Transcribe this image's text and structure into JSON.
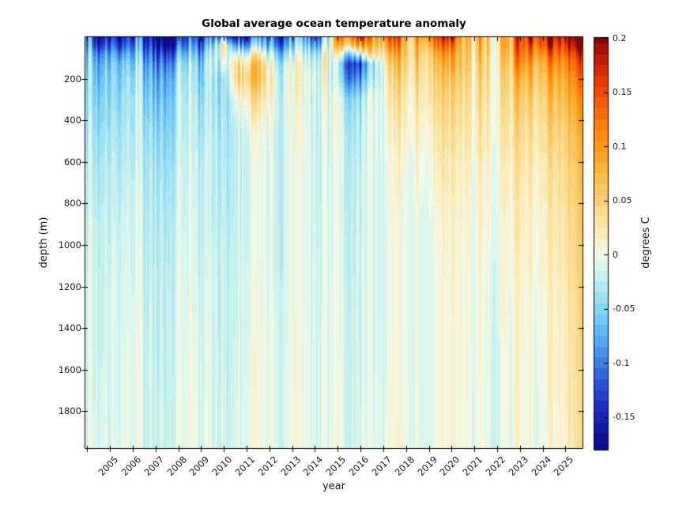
{
  "figure": {
    "background": "#FFFFFF"
  },
  "chart_data": {
    "type": "heatmap",
    "title": "Global average ocean temperature anomaly",
    "xlabel": "year",
    "ylabel": "depth (m)",
    "colorbar_label": "degrees C",
    "x_range_years": [
      2003.92,
      2025.75
    ],
    "depth_range_m": [
      0,
      1977
    ],
    "clim_degC": [
      -0.18,
      0.2
    ],
    "contour_step_degC": 0.01,
    "x_tick_years": [
      2005,
      2006,
      2007,
      2008,
      2009,
      2010,
      2011,
      2012,
      2013,
      2014,
      2015,
      2016,
      2017,
      2018,
      2019,
      2020,
      2021,
      2022,
      2023,
      2024,
      2025
    ],
    "y_tick_depths_m": [
      200,
      400,
      600,
      800,
      1000,
      1200,
      1400,
      1600,
      1800
    ],
    "colorbar_ticks_degC": [
      0.2,
      0.15,
      0.1,
      0.05,
      0,
      -0.05,
      -0.1,
      -0.15
    ],
    "colorbar_tick_labels": [
      "0.2",
      "0.15",
      "0.1",
      "0.05",
      "0",
      "-0.05",
      "-0.1",
      "-0.15"
    ],
    "grid_years": [
      2004,
      2004.5,
      2005,
      2005.5,
      2006,
      2006.5,
      2007,
      2007.5,
      2008,
      2008.5,
      2009,
      2009.5,
      2010,
      2010.5,
      2011,
      2011.5,
      2012,
      2012.5,
      2013,
      2013.5,
      2014,
      2014.5,
      2015,
      2015.5,
      2016,
      2016.5,
      2017,
      2017.5,
      2018,
      2018.5,
      2019,
      2019.5,
      2020,
      2020.5,
      2021,
      2021.5,
      2022,
      2022.5,
      2023,
      2023.5,
      2024,
      2024.5,
      2025,
      2025.5
    ],
    "grid_depths_m": [
      0,
      40,
      80,
      130,
      200,
      300,
      450,
      650,
      900,
      1200,
      1500,
      1750,
      1980
    ],
    "anomaly_degC": [
      [
        -0.1,
        -0.16,
        -0.13,
        -0.17,
        -0.14,
        -0.12,
        -0.15,
        -0.18,
        -0.17,
        -0.15,
        -0.14,
        -0.1,
        -0.04,
        -0.15,
        -0.16,
        -0.14,
        -0.13,
        -0.12,
        -0.13,
        -0.11,
        -0.12,
        -0.07,
        0.08,
        0.15,
        0.18,
        0.09,
        0.1,
        0.11,
        0.05,
        0.08,
        0.12,
        0.13,
        0.14,
        0.06,
        0.08,
        0.07,
        0.09,
        0.08,
        0.14,
        0.19,
        0.19,
        0.19,
        0.2,
        0.2
      ],
      [
        -0.09,
        -0.13,
        -0.11,
        -0.14,
        -0.12,
        -0.1,
        -0.13,
        -0.15,
        -0.14,
        -0.12,
        -0.11,
        -0.06,
        0.05,
        -0.08,
        -0.1,
        -0.09,
        -0.1,
        -0.09,
        -0.1,
        -0.08,
        -0.08,
        -0.04,
        0.04,
        0.09,
        0.11,
        0.06,
        0.07,
        0.08,
        0.04,
        0.06,
        0.09,
        0.1,
        0.1,
        0.05,
        0.07,
        0.06,
        0.08,
        0.08,
        0.13,
        0.16,
        0.17,
        0.17,
        0.18,
        0.18
      ],
      [
        -0.07,
        -0.09,
        -0.08,
        -0.1,
        -0.09,
        -0.08,
        -0.1,
        -0.11,
        -0.1,
        -0.09,
        -0.08,
        -0.03,
        0.03,
        -0.01,
        -0.03,
        -0.02,
        -0.05,
        -0.05,
        -0.06,
        -0.05,
        -0.04,
        -0.01,
        -0.02,
        -0.02,
        0.0,
        0.03,
        0.04,
        0.05,
        0.04,
        0.05,
        0.06,
        0.07,
        0.07,
        0.05,
        0.06,
        0.06,
        0.07,
        0.07,
        0.12,
        0.13,
        0.13,
        0.14,
        0.15,
        0.15
      ],
      [
        -0.06,
        -0.07,
        -0.06,
        -0.07,
        -0.07,
        -0.06,
        -0.08,
        -0.08,
        -0.07,
        -0.06,
        -0.06,
        -0.02,
        0.0,
        0.04,
        0.02,
        0.03,
        -0.02,
        -0.02,
        -0.03,
        -0.03,
        -0.02,
        0.0,
        -0.06,
        -0.1,
        -0.12,
        -0.05,
        0.01,
        0.03,
        0.03,
        0.04,
        0.05,
        0.05,
        0.06,
        0.05,
        0.05,
        0.05,
        0.06,
        0.06,
        0.1,
        0.1,
        0.1,
        0.11,
        0.12,
        0.13
      ],
      [
        -0.05,
        -0.06,
        -0.05,
        -0.06,
        -0.05,
        -0.05,
        -0.06,
        -0.06,
        -0.05,
        -0.05,
        -0.05,
        -0.03,
        -0.03,
        0.04,
        0.04,
        0.04,
        0.0,
        -0.01,
        -0.02,
        -0.02,
        -0.01,
        -0.01,
        -0.05,
        -0.08,
        -0.08,
        -0.04,
        0.0,
        0.02,
        0.02,
        0.03,
        0.04,
        0.04,
        0.04,
        0.04,
        0.04,
        0.045,
        0.05,
        0.05,
        0.07,
        0.08,
        0.08,
        0.09,
        0.1,
        0.11
      ],
      [
        -0.045,
        -0.05,
        -0.045,
        -0.05,
        -0.04,
        -0.04,
        -0.05,
        -0.05,
        -0.04,
        -0.04,
        -0.04,
        -0.03,
        -0.03,
        0.0,
        0.01,
        0.01,
        -0.01,
        -0.01,
        -0.02,
        -0.02,
        -0.015,
        -0.015,
        -0.02,
        -0.03,
        -0.03,
        -0.01,
        0.0,
        0.01,
        0.01,
        0.02,
        0.03,
        0.03,
        0.03,
        0.03,
        0.03,
        0.035,
        0.04,
        0.04,
        0.05,
        0.06,
        0.06,
        0.07,
        0.08,
        0.09
      ],
      [
        -0.035,
        -0.04,
        -0.035,
        -0.04,
        -0.035,
        -0.03,
        -0.035,
        -0.04,
        -0.035,
        -0.03,
        -0.03,
        -0.025,
        -0.025,
        -0.02,
        -0.015,
        -0.015,
        -0.015,
        -0.015,
        -0.015,
        -0.015,
        -0.015,
        -0.015,
        -0.015,
        -0.02,
        -0.02,
        -0.01,
        -0.005,
        0.0,
        0.005,
        0.01,
        0.015,
        0.02,
        0.02,
        0.02,
        0.025,
        0.025,
        0.03,
        0.03,
        0.035,
        0.04,
        0.045,
        0.05,
        0.06,
        0.07
      ],
      [
        -0.025,
        -0.03,
        -0.025,
        -0.03,
        -0.025,
        -0.025,
        -0.025,
        -0.03,
        -0.025,
        -0.025,
        -0.02,
        -0.02,
        -0.02,
        -0.02,
        -0.02,
        -0.02,
        -0.018,
        -0.018,
        -0.018,
        -0.015,
        -0.015,
        -0.015,
        -0.015,
        -0.015,
        -0.014,
        -0.012,
        -0.01,
        -0.008,
        -0.005,
        0.0,
        0.005,
        0.01,
        0.01,
        0.01,
        0.012,
        0.015,
        0.018,
        0.02,
        0.022,
        0.025,
        0.03,
        0.035,
        0.045,
        0.055
      ],
      [
        -0.02,
        -0.02,
        -0.02,
        -0.02,
        -0.02,
        -0.02,
        -0.02,
        -0.02,
        -0.02,
        -0.02,
        -0.018,
        -0.018,
        -0.018,
        -0.018,
        -0.018,
        -0.016,
        -0.016,
        -0.016,
        -0.015,
        -0.015,
        -0.015,
        -0.014,
        -0.014,
        -0.013,
        -0.013,
        -0.012,
        -0.01,
        -0.009,
        -0.008,
        -0.006,
        -0.004,
        0.0,
        0.003,
        0.005,
        0.006,
        0.008,
        0.01,
        0.012,
        0.014,
        0.016,
        0.02,
        0.025,
        0.035,
        0.045
      ],
      [
        -0.015,
        -0.015,
        -0.015,
        -0.015,
        -0.015,
        -0.015,
        -0.015,
        -0.015,
        -0.015,
        -0.015,
        -0.014,
        -0.014,
        -0.014,
        -0.014,
        -0.014,
        -0.014,
        -0.014,
        -0.013,
        -0.013,
        -0.013,
        -0.013,
        -0.012,
        -0.012,
        -0.012,
        -0.011,
        -0.011,
        -0.01,
        -0.009,
        -0.008,
        -0.007,
        -0.005,
        -0.003,
        0.0,
        0.002,
        0.003,
        0.004,
        0.005,
        0.006,
        0.008,
        0.01,
        0.014,
        0.018,
        0.028,
        0.038
      ],
      [
        -0.015,
        -0.015,
        -0.013,
        -0.013,
        -0.013,
        -0.013,
        -0.013,
        -0.013,
        -0.013,
        -0.012,
        -0.012,
        -0.012,
        -0.012,
        -0.012,
        -0.012,
        -0.012,
        -0.011,
        -0.011,
        -0.011,
        -0.011,
        -0.01,
        -0.01,
        -0.01,
        -0.01,
        -0.01,
        -0.01,
        -0.009,
        -0.008,
        -0.007,
        -0.006,
        -0.005,
        -0.004,
        -0.002,
        0.0,
        0.001,
        0.002,
        0.003,
        0.004,
        0.005,
        0.006,
        0.01,
        0.014,
        0.022,
        0.032
      ],
      [
        -0.012,
        -0.012,
        -0.012,
        -0.012,
        -0.01,
        -0.01,
        -0.01,
        -0.01,
        -0.01,
        -0.01,
        -0.01,
        -0.01,
        -0.01,
        -0.01,
        -0.01,
        -0.01,
        -0.01,
        -0.01,
        -0.01,
        -0.01,
        -0.01,
        -0.01,
        -0.009,
        -0.009,
        -0.009,
        -0.008,
        -0.008,
        -0.007,
        -0.006,
        -0.005,
        -0.004,
        -0.003,
        -0.002,
        -0.001,
        0.0,
        0.001,
        0.002,
        0.003,
        0.004,
        0.005,
        0.008,
        0.012,
        0.02,
        0.03
      ],
      [
        -0.01,
        -0.01,
        -0.01,
        -0.01,
        -0.01,
        -0.01,
        -0.01,
        -0.01,
        -0.01,
        -0.01,
        -0.01,
        -0.01,
        -0.01,
        -0.01,
        -0.01,
        -0.01,
        -0.01,
        -0.01,
        -0.01,
        -0.01,
        -0.008,
        -0.008,
        -0.008,
        -0.008,
        -0.007,
        -0.007,
        -0.006,
        -0.006,
        -0.005,
        -0.005,
        -0.004,
        -0.003,
        -0.002,
        -0.001,
        0.0,
        0.0,
        0.001,
        0.002,
        0.003,
        0.004,
        0.006,
        0.01,
        0.018,
        0.028
      ]
    ],
    "colormap_stops": [
      [
        -0.18,
        "#0A0A8A"
      ],
      [
        -0.16,
        "#121AA8"
      ],
      [
        -0.14,
        "#1C2EC6"
      ],
      [
        -0.12,
        "#2A52D8"
      ],
      [
        -0.1,
        "#3B7EE6"
      ],
      [
        -0.08,
        "#53A8F0"
      ],
      [
        -0.06,
        "#74C8F4"
      ],
      [
        -0.04,
        "#9CE0F3"
      ],
      [
        -0.02,
        "#C6F1EF"
      ],
      [
        -0.005,
        "#E6FAEC"
      ],
      [
        0.005,
        "#F8F6DC"
      ],
      [
        0.02,
        "#FBEBB7"
      ],
      [
        0.04,
        "#FADA8B"
      ],
      [
        0.06,
        "#F9C75F"
      ],
      [
        0.08,
        "#FBB136"
      ],
      [
        0.1,
        "#FC9719"
      ],
      [
        0.12,
        "#FB7B0B"
      ],
      [
        0.14,
        "#F55C06"
      ],
      [
        0.16,
        "#E63A05"
      ],
      [
        0.175,
        "#CE2406"
      ],
      [
        0.19,
        "#A41108"
      ],
      [
        0.2,
        "#7C0808"
      ]
    ]
  }
}
